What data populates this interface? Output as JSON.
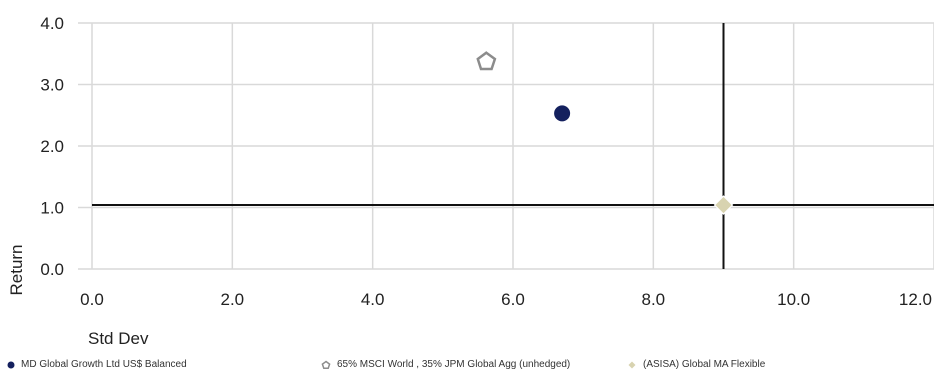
{
  "chart_data": {
    "type": "scatter",
    "xlabel": "Std Dev",
    "ylabel": "Return",
    "xlim": [
      0,
      12
    ],
    "ylim": [
      0,
      4
    ],
    "x_ticks": [
      "0.0",
      "2.0",
      "4.0",
      "6.0",
      "8.0",
      "10.0",
      "12.0"
    ],
    "y_ticks": [
      "0.0",
      "1.0",
      "2.0",
      "3.0",
      "4.0"
    ],
    "grid": true,
    "reference_lines": {
      "x": 9.0,
      "y": 1.04
    },
    "series": [
      {
        "name": "MD Global Growth Ltd US$ Balanced",
        "marker": "circle",
        "color": "#14205e",
        "x": 6.7,
        "y": 2.53
      },
      {
        "name": "65% MSCI World , 35% JPM Global Agg (unhedged)",
        "marker": "pentagon",
        "color": "#8c8c8c",
        "x": 5.62,
        "y": 3.37
      },
      {
        "name": "(ASISA) Global MA Flexible",
        "marker": "diamond",
        "color": "#d8d3b0",
        "x": 9.0,
        "y": 1.04
      }
    ],
    "legend_position": "bottom"
  }
}
